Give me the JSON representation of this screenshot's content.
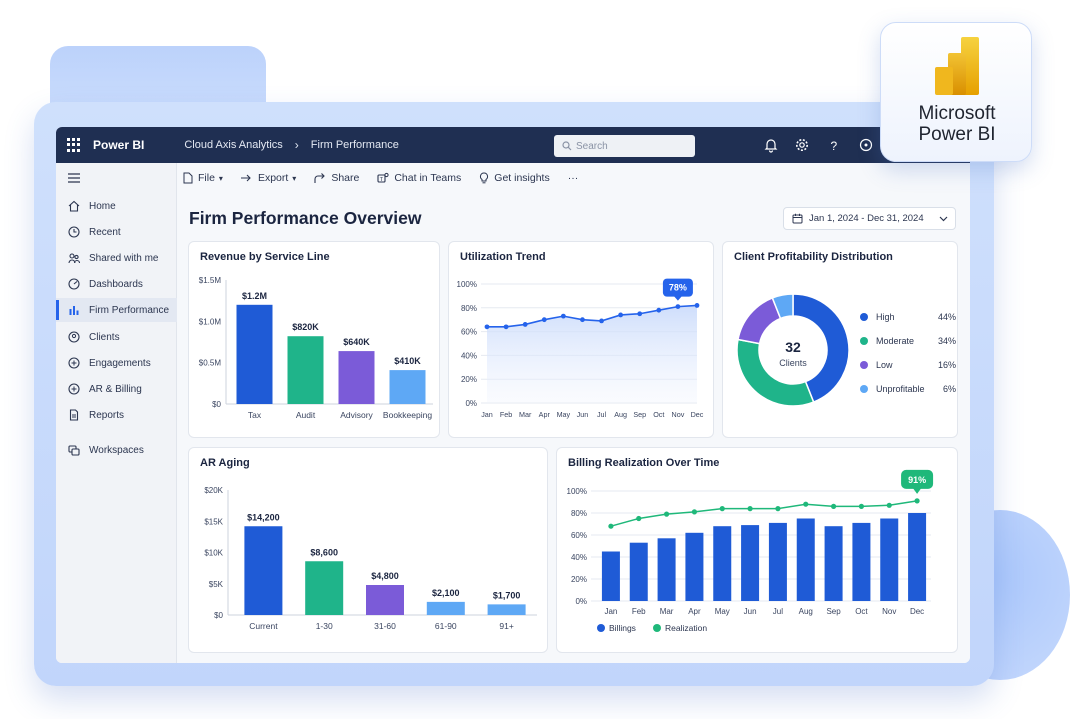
{
  "app": {
    "name": "Power BI",
    "breadcrumb": [
      "Cloud Axis Analytics",
      "Firm Performance"
    ],
    "search_placeholder": "Search"
  },
  "logo": {
    "line1": "Microsoft",
    "line2": "Power BI"
  },
  "sidebar": {
    "items": [
      {
        "label": "Home",
        "icon": "home-icon"
      },
      {
        "label": "Recent",
        "icon": "clock-icon"
      },
      {
        "label": "Shared with me",
        "icon": "share-people-icon"
      },
      {
        "label": "Dashboards",
        "icon": "dashboard-icon"
      },
      {
        "label": "Firm Performance",
        "icon": "bar-chart-icon",
        "active": true
      },
      {
        "label": "Clients",
        "icon": "clients-icon"
      },
      {
        "label": "Engagements",
        "icon": "engagements-icon"
      },
      {
        "label": "AR & Billing",
        "icon": "billing-icon"
      },
      {
        "label": "Reports",
        "icon": "report-icon"
      },
      {
        "label": "Workspaces",
        "icon": "workspaces-icon"
      }
    ]
  },
  "toolbar": {
    "file": "File",
    "export": "Export",
    "share": "Share",
    "chat": "Chat in Teams",
    "insights": "Get insights",
    "more": "···"
  },
  "page": {
    "title": "Firm Performance Overview",
    "date_range": "Jan 1, 2024 - Dec 31, 2024"
  },
  "colors": {
    "blue": "#1f5bd6",
    "green": "#1fb48a",
    "purple": "#7b5bd8",
    "light_blue": "#5ea8f5",
    "accent": "#2563eb",
    "realization": "#1fb87a"
  },
  "chart_data": [
    {
      "id": "revenue",
      "type": "bar",
      "title": "Revenue by Service Line",
      "categories": [
        "Tax",
        "Audit",
        "Advisory",
        "Bookkeeping"
      ],
      "values": [
        1.2,
        0.82,
        0.64,
        0.41
      ],
      "data_labels": [
        "$1.2M",
        "$820K",
        "$640K",
        "$410K"
      ],
      "yticks": [
        "$0",
        "$0.5M",
        "$1.0M",
        "$1.5M"
      ],
      "ylim": [
        0,
        1.5
      ],
      "colors": [
        "#1f5bd6",
        "#1fb48a",
        "#7b5bd8",
        "#5ea8f5"
      ]
    },
    {
      "id": "utilization",
      "type": "line",
      "title": "Utilization Trend",
      "categories": [
        "Jan",
        "Feb",
        "Mar",
        "Apr",
        "May",
        "Jun",
        "Jul",
        "Aug",
        "Sep",
        "Oct",
        "Nov",
        "Dec"
      ],
      "values": [
        64,
        64,
        66,
        70,
        73,
        70,
        69,
        74,
        75,
        78,
        81,
        82
      ],
      "callout": "78%",
      "yticks": [
        "0%",
        "20%",
        "40%",
        "60%",
        "80%",
        "100%"
      ],
      "ylim": [
        0,
        100
      ]
    },
    {
      "id": "profitability",
      "type": "pie",
      "title": "Client Profitability Distribution",
      "center_value": "32",
      "center_label": "Clients",
      "slices": [
        {
          "label": "High",
          "value": 44,
          "pct": "44%",
          "color": "#1f5bd6"
        },
        {
          "label": "Moderate",
          "value": 34,
          "pct": "34%",
          "color": "#1fb48a"
        },
        {
          "label": "Low",
          "value": 16,
          "pct": "16%",
          "color": "#7b5bd8"
        },
        {
          "label": "Unprofitable",
          "value": 6,
          "pct": "6%",
          "color": "#5ea8f5"
        }
      ]
    },
    {
      "id": "ar-aging",
      "type": "bar",
      "title": "AR Aging",
      "categories": [
        "Current",
        "1-30",
        "31-60",
        "61-90",
        "91+"
      ],
      "values": [
        14200,
        8600,
        4800,
        2100,
        1700
      ],
      "data_labels": [
        "$14,200",
        "$8,600",
        "$4,800",
        "$2,100",
        "$1,700"
      ],
      "yticks": [
        "$0",
        "$5K",
        "$10K",
        "$15K",
        "$20K"
      ],
      "ylim": [
        0,
        20000
      ],
      "colors": [
        "#1f5bd6",
        "#1fb48a",
        "#7b5bd8",
        "#5ea8f5",
        "#5ea8f5"
      ]
    },
    {
      "id": "billing",
      "type": "bar",
      "title": "Billing Realization Over Time",
      "categories": [
        "Jan",
        "Feb",
        "Mar",
        "Apr",
        "May",
        "Jun",
        "Jul",
        "Aug",
        "Sep",
        "Oct",
        "Nov",
        "Dec"
      ],
      "series": [
        {
          "name": "Billings",
          "type": "bar",
          "values": [
            45,
            53,
            57,
            62,
            68,
            69,
            71,
            75,
            68,
            71,
            75,
            80
          ],
          "color": "#1f5bd6"
        },
        {
          "name": "Realization",
          "type": "line",
          "values": [
            68,
            75,
            79,
            81,
            84,
            84,
            84,
            88,
            86,
            86,
            87,
            91
          ],
          "color": "#1fb87a"
        }
      ],
      "callout": "91%",
      "yticks": [
        "0%",
        "20%",
        "40%",
        "60%",
        "80%",
        "100%"
      ],
      "ylim": [
        0,
        100
      ],
      "legend": "bottom-left"
    }
  ]
}
